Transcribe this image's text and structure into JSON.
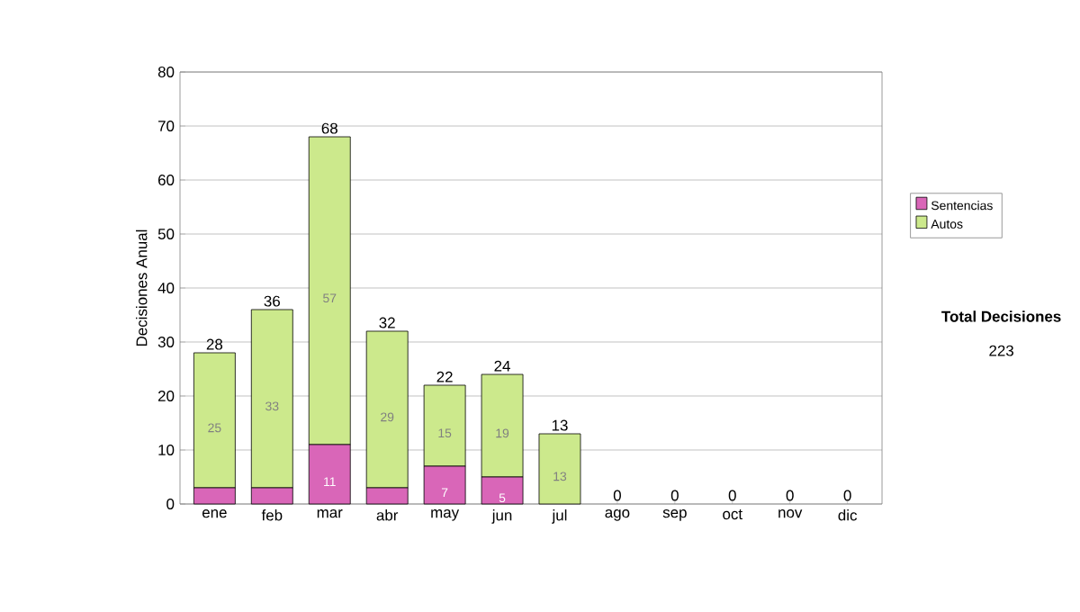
{
  "chart_data": {
    "type": "bar",
    "stacked": true,
    "ylabel": "Decisiones Anual",
    "categories": [
      "ene",
      "feb",
      "mar",
      "abr",
      "may",
      "jun",
      "jul",
      "ago",
      "sep",
      "oct",
      "nov",
      "dic"
    ],
    "series": [
      {
        "name": "Sentencias",
        "color": "#d966b8",
        "values": [
          3,
          3,
          11,
          3,
          7,
          5,
          0,
          0,
          0,
          0,
          0,
          0
        ],
        "value_labels": [
          null,
          null,
          "11",
          null,
          "7",
          "5",
          null,
          null,
          null,
          null,
          null,
          null
        ]
      },
      {
        "name": "Autos",
        "color": "#cce98c",
        "values": [
          25,
          33,
          57,
          29,
          15,
          19,
          13,
          0,
          0,
          0,
          0,
          0
        ],
        "value_labels": [
          "25",
          "33",
          "57",
          "29",
          "15",
          "19",
          "13",
          null,
          null,
          null,
          null,
          null
        ]
      }
    ],
    "totals": [
      "28",
      "36",
      "68",
      "32",
      "22",
      "24",
      "13",
      "0",
      "0",
      "0",
      "0",
      "0"
    ],
    "ylim": [
      0,
      80
    ],
    "yticks": [
      0,
      10,
      20,
      30,
      40,
      50,
      60,
      70,
      80
    ],
    "grid": "y",
    "legend": "right",
    "annotations": [
      "Total Decisiones",
      "223"
    ]
  }
}
